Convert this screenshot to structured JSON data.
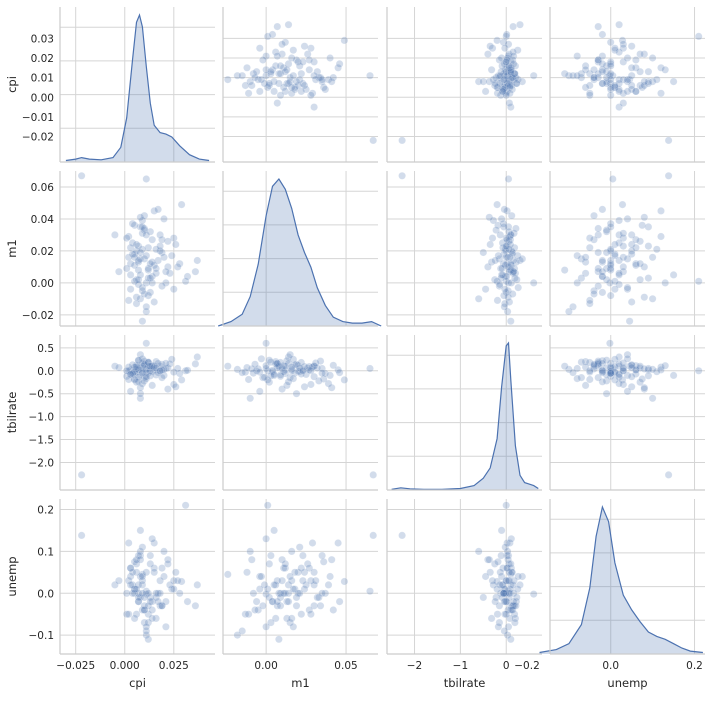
{
  "chart_data": {
    "type": "pairplot",
    "variables": [
      "cpi",
      "m1",
      "tbilrate",
      "unemp"
    ],
    "colors": {
      "series": "#4c72b0",
      "grid": "#d5d5d5",
      "axis": "#cccccc",
      "text": "#262626"
    },
    "axes": {
      "cpi": {
        "range": [
          -0.033,
          0.046
        ],
        "ticks": [
          -0.02,
          -0.01,
          0.0,
          0.01,
          0.02,
          0.03
        ],
        "tick_labels": [
          "−0.02",
          "−0.01",
          "0.00",
          "0.01",
          "0.02",
          "0.03"
        ],
        "x_ticks": [
          -0.025,
          0.0,
          0.025
        ],
        "x_tick_labels": [
          "−0.025",
          "0.000",
          "0.025"
        ]
      },
      "m1": {
        "range": [
          -0.027,
          0.07
        ],
        "ticks": [
          -0.02,
          0.0,
          0.02,
          0.04,
          0.06
        ],
        "tick_labels": [
          "−0.02",
          "0.00",
          "0.02",
          "0.04",
          "0.06"
        ],
        "x_ticks": [
          0.0,
          0.05
        ],
        "x_tick_labels": [
          "0.00",
          "0.05"
        ]
      },
      "tbilrate": {
        "range": [
          -2.6,
          0.78
        ],
        "ticks": [
          -2.0,
          -1.5,
          -1.0,
          -0.5,
          0.0,
          0.5
        ],
        "tick_labels": [
          "−2.0",
          "−1.5",
          "−1.0",
          "−0.5",
          "0.0",
          "0.5"
        ],
        "x_ticks": [
          -2,
          -1,
          0
        ],
        "x_tick_labels": [
          "−2",
          "−1",
          "0"
        ]
      },
      "unemp": {
        "range": [
          -0.145,
          0.225
        ],
        "ticks": [
          -0.1,
          0.0,
          0.1,
          0.2
        ],
        "tick_labels": [
          "−0.1",
          "0.0",
          "0.1",
          "0.2"
        ],
        "x_ticks": [
          -0.2,
          0.0,
          0.2
        ],
        "x_tick_labels": [
          "−0.2",
          "0.0",
          "0.2"
        ]
      }
    },
    "diagonal": {
      "kind": "kde",
      "cpi": {
        "x": [
          -0.03,
          -0.025,
          -0.022,
          -0.018,
          -0.012,
          -0.006,
          -0.002,
          0.001,
          0.004,
          0.006,
          0.0075,
          0.009,
          0.011,
          0.013,
          0.015,
          0.018,
          0.021,
          0.024,
          0.028,
          0.033,
          0.038,
          0.043
        ],
        "density": [
          0.01,
          0.02,
          0.03,
          0.02,
          0.015,
          0.03,
          0.1,
          0.3,
          0.7,
          0.95,
          1.0,
          0.92,
          0.65,
          0.4,
          0.25,
          0.2,
          0.19,
          0.17,
          0.11,
          0.05,
          0.02,
          0.01
        ]
      },
      "m1": {
        "x": [
          -0.03,
          -0.022,
          -0.015,
          -0.01,
          -0.005,
          0.0,
          0.004,
          0.008,
          0.012,
          0.016,
          0.02,
          0.024,
          0.028,
          0.032,
          0.037,
          0.042,
          0.048,
          0.054,
          0.06,
          0.066,
          0.072
        ],
        "density": [
          0.0,
          0.03,
          0.08,
          0.2,
          0.42,
          0.75,
          0.95,
          1.0,
          0.93,
          0.8,
          0.62,
          0.5,
          0.4,
          0.26,
          0.14,
          0.06,
          0.03,
          0.02,
          0.02,
          0.03,
          0.0
        ]
      },
      "tbilrate": {
        "x": [
          -2.5,
          -2.3,
          -2.1,
          -1.8,
          -1.4,
          -1.0,
          -0.7,
          -0.5,
          -0.35,
          -0.2,
          -0.1,
          0.0,
          0.05,
          0.1,
          0.2,
          0.3,
          0.4,
          0.5,
          0.6,
          0.7
        ],
        "density": [
          0.005,
          0.015,
          0.008,
          0.005,
          0.005,
          0.01,
          0.03,
          0.08,
          0.15,
          0.35,
          0.7,
          0.98,
          1.0,
          0.75,
          0.3,
          0.1,
          0.05,
          0.04,
          0.03,
          0.01
        ]
      },
      "unemp": {
        "x": [
          -0.17,
          -0.13,
          -0.1,
          -0.07,
          -0.05,
          -0.035,
          -0.02,
          -0.005,
          0.01,
          0.03,
          0.05,
          0.07,
          0.09,
          0.11,
          0.13,
          0.15,
          0.17,
          0.19,
          0.22
        ],
        "density": [
          0.01,
          0.03,
          0.07,
          0.2,
          0.45,
          0.8,
          1.0,
          0.9,
          0.62,
          0.4,
          0.3,
          0.22,
          0.15,
          0.12,
          0.1,
          0.07,
          0.04,
          0.02,
          0.01
        ]
      }
    },
    "observations": [
      {
        "cpi": 0.011,
        "m1": 0.065,
        "tbilrate": 0.05,
        "unemp": 0.005
      },
      {
        "cpi": -0.022,
        "m1": 0.067,
        "tbilrate": -2.27,
        "unemp": 0.138
      },
      {
        "cpi": 0.011,
        "m1": 0.0,
        "tbilrate": 0.6,
        "unemp": -0.002
      },
      {
        "cpi": 0.009,
        "m1": -0.024,
        "tbilrate": 0.1,
        "unemp": 0.045
      },
      {
        "cpi": 0.036,
        "m1": 0.007,
        "tbilrate": 0.15,
        "unemp": -0.03
      },
      {
        "cpi": 0.037,
        "m1": 0.014,
        "tbilrate": 0.3,
        "unemp": 0.02
      },
      {
        "cpi": 0.031,
        "m1": 0.001,
        "tbilrate": 0.0,
        "unemp": 0.21
      },
      {
        "cpi": 0.029,
        "m1": 0.049,
        "tbilrate": -0.2,
        "unemp": 0.028
      },
      {
        "cpi": 0.015,
        "m1": 0.045,
        "tbilrate": 0.02,
        "unemp": 0.12
      },
      {
        "cpi": 0.02,
        "m1": 0.04,
        "tbilrate": -0.1,
        "unemp": 0.04
      },
      {
        "cpi": 0.008,
        "m1": 0.035,
        "tbilrate": 0.05,
        "unemp": 0.09
      },
      {
        "cpi": 0.025,
        "m1": 0.028,
        "tbilrate": -0.3,
        "unemp": 0.03
      },
      {
        "cpi": 0.012,
        "m1": 0.022,
        "tbilrate": 0.18,
        "unemp": -0.05
      },
      {
        "cpi": 0.005,
        "m1": 0.018,
        "tbilrate": -0.05,
        "unemp": 0.01
      },
      {
        "cpi": 0.018,
        "m1": 0.03,
        "tbilrate": 0.1,
        "unemp": -0.03
      },
      {
        "cpi": 0.003,
        "m1": 0.012,
        "tbilrate": 0.02,
        "unemp": 0.06
      },
      {
        "cpi": 0.01,
        "m1": 0.015,
        "tbilrate": -0.15,
        "unemp": -0.07
      },
      {
        "cpi": 0.007,
        "m1": 0.008,
        "tbilrate": 0.08,
        "unemp": 0.0
      },
      {
        "cpi": 0.014,
        "m1": 0.004,
        "tbilrate": -0.02,
        "unemp": -0.02
      },
      {
        "cpi": 0.006,
        "m1": 0.02,
        "tbilrate": 0.12,
        "unemp": 0.05
      },
      {
        "cpi": 0.022,
        "m1": 0.01,
        "tbilrate": -0.4,
        "unemp": 0.08
      },
      {
        "cpi": 0.009,
        "m1": -0.005,
        "tbilrate": 0.04,
        "unemp": -0.04
      },
      {
        "cpi": 0.004,
        "m1": 0.025,
        "tbilrate": -0.08,
        "unemp": 0.02
      },
      {
        "cpi": 0.016,
        "m1": 0.006,
        "tbilrate": 0.2,
        "unemp": -0.06
      },
      {
        "cpi": 0.002,
        "m1": 0.016,
        "tbilrate": 0.0,
        "unemp": 0.03
      },
      {
        "cpi": 0.008,
        "m1": -0.01,
        "tbilrate": -0.6,
        "unemp": 0.1
      },
      {
        "cpi": 0.013,
        "m1": 0.032,
        "tbilrate": 0.06,
        "unemp": -0.01
      },
      {
        "cpi": 0.006,
        "m1": 0.002,
        "tbilrate": -0.25,
        "unemp": 0.07
      },
      {
        "cpi": 0.019,
        "m1": 0.019,
        "tbilrate": 0.14,
        "unemp": -0.03
      },
      {
        "cpi": 0.001,
        "m1": 0.009,
        "tbilrate": -0.12,
        "unemp": 0.0
      },
      {
        "cpi": 0.011,
        "m1": -0.018,
        "tbilrate": 0.03,
        "unemp": -0.1
      },
      {
        "cpi": 0.026,
        "m1": 0.024,
        "tbilrate": -0.35,
        "unemp": 0.05
      },
      {
        "cpi": 0.007,
        "m1": 0.013,
        "tbilrate": 0.22,
        "unemp": -0.02
      },
      {
        "cpi": 0.012,
        "m1": -0.008,
        "tbilrate": -0.05,
        "unemp": 0.0
      },
      {
        "cpi": -0.005,
        "m1": 0.03,
        "tbilrate": 0.1,
        "unemp": 0.02
      },
      {
        "cpi": 0.005,
        "m1": 0.036,
        "tbilrate": -0.18,
        "unemp": 0.075
      },
      {
        "cpi": 0.021,
        "m1": 0.0,
        "tbilrate": 0.05,
        "unemp": -0.08
      },
      {
        "cpi": 0.009,
        "m1": 0.021,
        "tbilrate": -0.02,
        "unemp": 0.11
      },
      {
        "cpi": 0.017,
        "m1": 0.014,
        "tbilrate": 0.16,
        "unemp": 0.0
      },
      {
        "cpi": 0.003,
        "m1": -0.004,
        "tbilrate": -0.45,
        "unemp": 0.04
      },
      {
        "cpi": 0.014,
        "m1": 0.027,
        "tbilrate": 0.09,
        "unemp": -0.04
      },
      {
        "cpi": 0.008,
        "m1": 0.005,
        "tbilrate": -0.1,
        "unemp": 0.15
      },
      {
        "cpi": 0.024,
        "m1": 0.017,
        "tbilrate": 0.25,
        "unemp": 0.01
      },
      {
        "cpi": 0.006,
        "m1": -0.013,
        "tbilrate": -0.03,
        "unemp": -0.05
      },
      {
        "cpi": 0.015,
        "m1": 0.011,
        "tbilrate": 0.11,
        "unemp": 0.06
      },
      {
        "cpi": 0.01,
        "m1": 0.033,
        "tbilrate": -0.22,
        "unemp": -0.01
      },
      {
        "cpi": -0.003,
        "m1": 0.007,
        "tbilrate": 0.07,
        "unemp": 0.03
      },
      {
        "cpi": 0.019,
        "m1": -0.002,
        "tbilrate": -0.15,
        "unemp": -0.03
      },
      {
        "cpi": 0.007,
        "m1": 0.023,
        "tbilrate": 0.02,
        "unemp": 0.09
      },
      {
        "cpi": 0.012,
        "m1": 0.003,
        "tbilrate": 0.19,
        "unemp": -0.07
      },
      {
        "cpi": 0.028,
        "m1": 0.012,
        "tbilrate": -0.06,
        "unemp": 0.0
      },
      {
        "cpi": 0.004,
        "m1": 0.018,
        "tbilrate": 0.13,
        "unemp": 0.05
      },
      {
        "cpi": 0.009,
        "m1": 0.039,
        "tbilrate": -0.28,
        "unemp": 0.02
      },
      {
        "cpi": 0.013,
        "m1": -0.006,
        "tbilrate": 0.0,
        "unemp": -0.02
      },
      {
        "cpi": 0.002,
        "m1": 0.029,
        "tbilrate": 0.08,
        "unemp": 0.12
      },
      {
        "cpi": 0.016,
        "m1": 0.009,
        "tbilrate": -0.09,
        "unemp": -0.01
      },
      {
        "cpi": 0.008,
        "m1": 0.015,
        "tbilrate": 0.35,
        "unemp": 0.04
      },
      {
        "cpi": 0.011,
        "m1": -0.015,
        "tbilrate": -0.04,
        "unemp": -0.09
      },
      {
        "cpi": 0.022,
        "m1": 0.026,
        "tbilrate": 0.06,
        "unemp": 0.07
      },
      {
        "cpi": 0.005,
        "m1": 0.001,
        "tbilrate": -0.2,
        "unemp": 0.01
      },
      {
        "cpi": 0.01,
        "m1": 0.042,
        "tbilrate": 0.12,
        "unemp": -0.04
      },
      {
        "cpi": 0.018,
        "m1": 0.02,
        "tbilrate": -0.01,
        "unemp": 0.0
      },
      {
        "cpi": 0.006,
        "m1": -0.009,
        "tbilrate": 0.04,
        "unemp": 0.08
      },
      {
        "cpi": 0.014,
        "m1": 0.013,
        "tbilrate": -0.32,
        "unemp": -0.06
      },
      {
        "cpi": 0.009,
        "m1": 0.031,
        "tbilrate": 0.17,
        "unemp": 0.03
      },
      {
        "cpi": 0.032,
        "m1": 0.004,
        "tbilrate": 0.01,
        "unemp": -0.02
      },
      {
        "cpi": 0.003,
        "m1": 0.022,
        "tbilrate": -0.07,
        "unemp": 0.06
      },
      {
        "cpi": 0.012,
        "m1": 0.008,
        "tbilrate": 0.1,
        "unemp": -0.11
      },
      {
        "cpi": 0.007,
        "m1": -0.001,
        "tbilrate": -0.14,
        "unemp": 0.02
      },
      {
        "cpi": 0.02,
        "m1": 0.016,
        "tbilrate": 0.03,
        "unemp": 0.1
      },
      {
        "cpi": 0.01,
        "m1": 0.034,
        "tbilrate": 0.21,
        "unemp": -0.03
      },
      {
        "cpi": 0.005,
        "m1": 0.011,
        "tbilrate": -0.02,
        "unemp": 0.0
      },
      {
        "cpi": 0.015,
        "m1": -0.012,
        "tbilrate": 0.07,
        "unemp": 0.05
      },
      {
        "cpi": 0.008,
        "m1": 0.019,
        "tbilrate": -0.5,
        "unemp": -0.01
      },
      {
        "cpi": 0.023,
        "m1": 0.006,
        "tbilrate": 0.15,
        "unemp": 0.02
      },
      {
        "cpi": 0.001,
        "m1": 0.028,
        "tbilrate": 0.0,
        "unemp": -0.05
      },
      {
        "cpi": 0.013,
        "m1": 0.003,
        "tbilrate": -0.11,
        "unemp": 0.09
      },
      {
        "cpi": 0.006,
        "m1": 0.024,
        "tbilrate": 0.09,
        "unemp": 0.01
      },
      {
        "cpi": 0.017,
        "m1": 0.046,
        "tbilrate": -0.04,
        "unemp": -0.02
      },
      {
        "cpi": 0.009,
        "m1": -0.003,
        "tbilrate": 0.26,
        "unemp": 0.04
      },
      {
        "cpi": 0.011,
        "m1": 0.017,
        "tbilrate": -0.17,
        "unemp": -0.08
      },
      {
        "cpi": 0.027,
        "m1": 0.01,
        "tbilrate": 0.05,
        "unemp": 0.03
      },
      {
        "cpi": 0.004,
        "m1": 0.037,
        "tbilrate": -0.06,
        "unemp": 0.0
      },
      {
        "cpi": 0.014,
        "m1": 0.0,
        "tbilrate": 0.11,
        "unemp": 0.13
      },
      {
        "cpi": 0.007,
        "m1": 0.014,
        "tbilrate": -0.24,
        "unemp": -0.02
      },
      {
        "cpi": 0.019,
        "m1": 0.027,
        "tbilrate": 0.02,
        "unemp": 0.06
      },
      {
        "cpi": 0.01,
        "m1": -0.007,
        "tbilrate": 0.14,
        "unemp": -0.04
      },
      {
        "cpi": 0.003,
        "m1": 0.005,
        "tbilrate": -0.08,
        "unemp": 0.02
      },
      {
        "cpi": 0.016,
        "m1": 0.021,
        "tbilrate": 0.06,
        "unemp": 0.0
      },
      {
        "cpi": 0.008,
        "m1": 0.041,
        "tbilrate": -0.37,
        "unemp": 0.08
      },
      {
        "cpi": 0.012,
        "m1": 0.009,
        "tbilrate": 0.18,
        "unemp": -0.03
      },
      {
        "cpi": 0.025,
        "m1": -0.004,
        "tbilrate": -0.03,
        "unemp": 0.01
      },
      {
        "cpi": 0.005,
        "m1": 0.016,
        "tbilrate": 0.08,
        "unemp": -0.06
      },
      {
        "cpi": 0.011,
        "m1": 0.03,
        "tbilrate": -0.13,
        "unemp": 0.05
      },
      {
        "cpi": 0.007,
        "m1": 0.002,
        "tbilrate": 0.23,
        "unemp": -0.01
      },
      {
        "cpi": 0.018,
        "m1": 0.023,
        "tbilrate": 0.0,
        "unemp": 0.03
      },
      {
        "cpi": 0.002,
        "m1": -0.011,
        "tbilrate": -0.19,
        "unemp": -0.05
      },
      {
        "cpi": 0.013,
        "m1": 0.012,
        "tbilrate": 0.1,
        "unemp": 0.07
      },
      {
        "cpi": 0.009,
        "m1": 0.035,
        "tbilrate": -0.05,
        "unemp": 0.0
      },
      {
        "cpi": 0.021,
        "m1": 0.007,
        "tbilrate": 0.16,
        "unemp": -0.02
      }
    ]
  }
}
